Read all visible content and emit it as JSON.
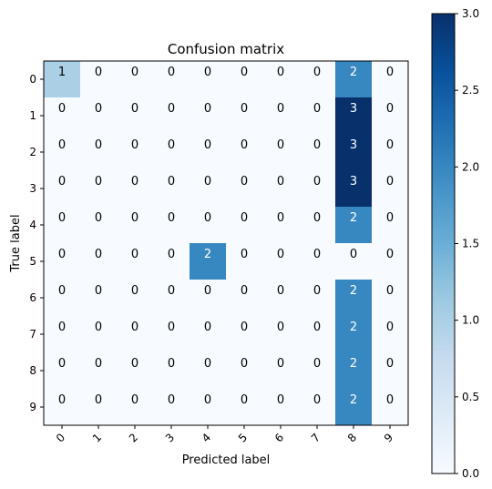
{
  "chart_data": {
    "type": "heatmap",
    "title": "Confusion matrix",
    "xlabel": "Predicted label",
    "ylabel": "True label",
    "x_categories": [
      "0",
      "1",
      "2",
      "3",
      "4",
      "5",
      "6",
      "7",
      "8",
      "9"
    ],
    "y_categories": [
      "0",
      "1",
      "2",
      "3",
      "4",
      "5",
      "6",
      "7",
      "8",
      "9"
    ],
    "values": [
      [
        1,
        0,
        0,
        0,
        0,
        0,
        0,
        0,
        2,
        0
      ],
      [
        0,
        0,
        0,
        0,
        0,
        0,
        0,
        0,
        3,
        0
      ],
      [
        0,
        0,
        0,
        0,
        0,
        0,
        0,
        0,
        3,
        0
      ],
      [
        0,
        0,
        0,
        0,
        0,
        0,
        0,
        0,
        3,
        0
      ],
      [
        0,
        0,
        0,
        0,
        0,
        0,
        0,
        0,
        2,
        0
      ],
      [
        0,
        0,
        0,
        0,
        2,
        0,
        0,
        0,
        0,
        0
      ],
      [
        0,
        0,
        0,
        0,
        0,
        0,
        0,
        0,
        2,
        0
      ],
      [
        0,
        0,
        0,
        0,
        0,
        0,
        0,
        0,
        2,
        0
      ],
      [
        0,
        0,
        0,
        0,
        0,
        0,
        0,
        0,
        2,
        0
      ],
      [
        0,
        0,
        0,
        0,
        0,
        0,
        0,
        0,
        2,
        0
      ]
    ],
    "colormap": "Blues",
    "vmin": 0,
    "vmax": 3,
    "colorbar_ticks": [
      "0.0",
      "0.5",
      "1.0",
      "1.5",
      "2.0",
      "2.5",
      "3.0"
    ],
    "colorbar_tick_values": [
      0,
      0.5,
      1.0,
      1.5,
      2.0,
      2.5,
      3.0
    ],
    "colors": {
      "low": "#f7fbff",
      "text_dark": "#000000",
      "text_light": "#ffffff"
    }
  }
}
